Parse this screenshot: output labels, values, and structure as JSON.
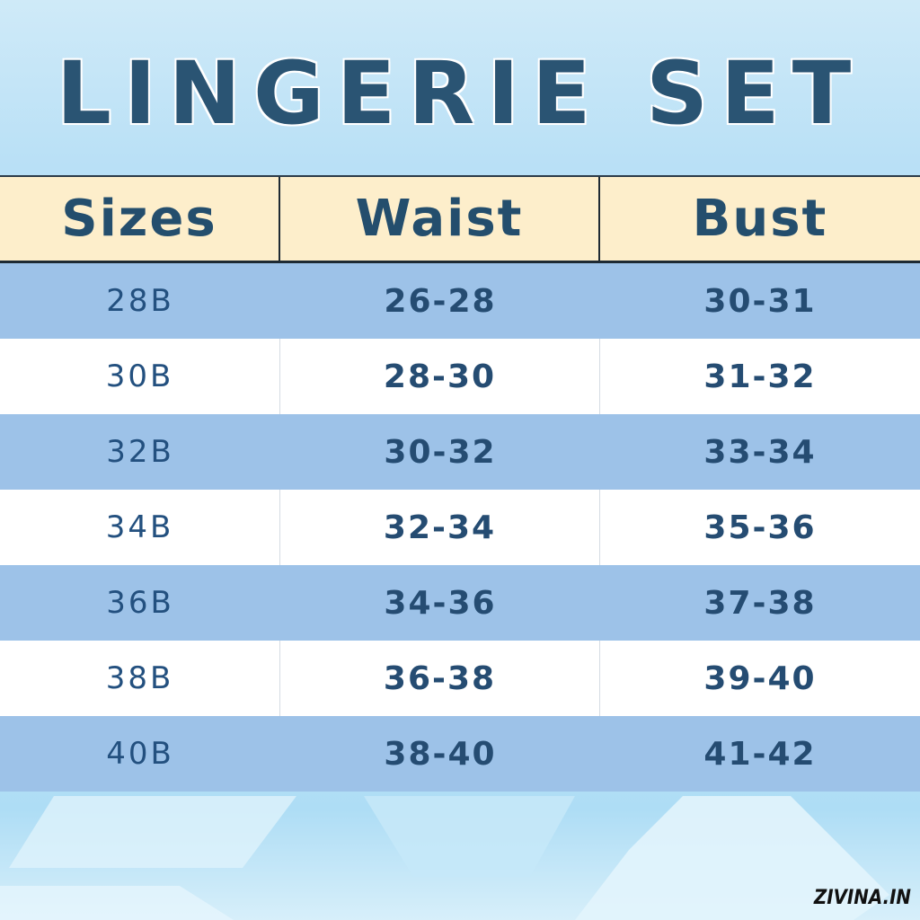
{
  "title": "LINGERIE SET",
  "table": {
    "headers": [
      "Sizes",
      "Waist",
      "Bust"
    ],
    "rows": [
      {
        "size": "28B",
        "waist": "26-28",
        "bust": "30-31"
      },
      {
        "size": "30B",
        "waist": "28-30",
        "bust": "31-32"
      },
      {
        "size": "32B",
        "waist": "30-32",
        "bust": "33-34"
      },
      {
        "size": "34B",
        "waist": "32-34",
        "bust": "35-36"
      },
      {
        "size": "36B",
        "waist": "34-36",
        "bust": "37-38"
      },
      {
        "size": "38B",
        "waist": "36-38",
        "bust": "39-40"
      },
      {
        "size": "40B",
        "waist": "38-40",
        "bust": "41-42"
      }
    ]
  },
  "brand": "ZIVINA.IN",
  "colors": {
    "header_bg": "#fdeecb",
    "row_blue": "#9dc2e8",
    "text": "#254c72"
  }
}
